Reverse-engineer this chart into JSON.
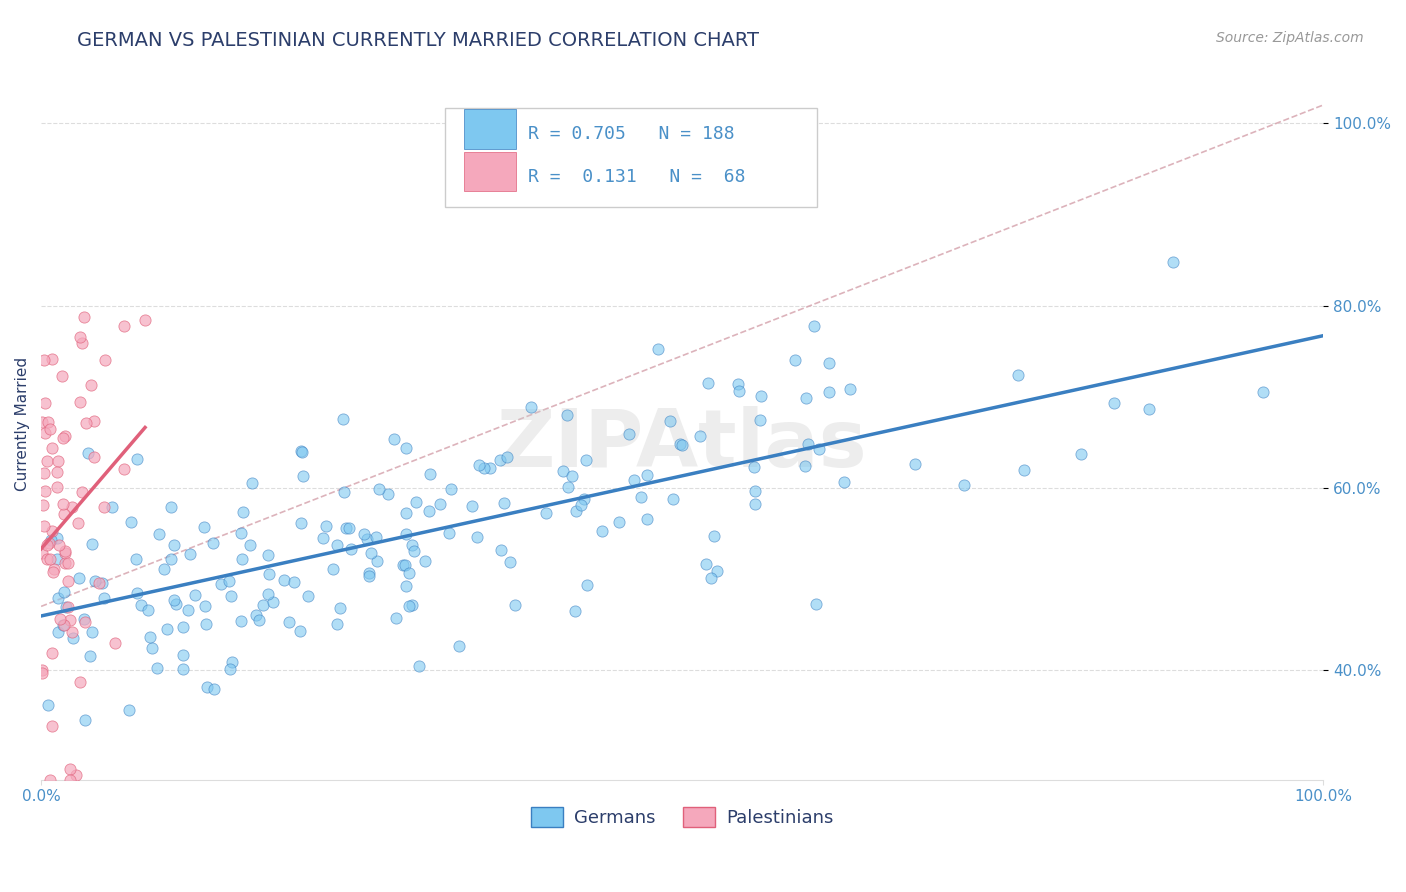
{
  "title": "GERMAN VS PALESTINIAN CURRENTLY MARRIED CORRELATION CHART",
  "source": "Source: ZipAtlas.com",
  "ylabel": "Currently Married",
  "german_R": 0.705,
  "german_N": 188,
  "palestinian_R": 0.131,
  "palestinian_N": 68,
  "german_color": "#7EC8F0",
  "german_color_dark": "#3A7FC1",
  "palestinian_color": "#F5A8BC",
  "palestinian_color_dark": "#E0607A",
  "legend_label_german": "Germans",
  "legend_label_palestinian": "Palestinians",
  "watermark": "ZIPAtlas",
  "xlim": [
    0.0,
    1.0
  ],
  "ylim": [
    0.28,
    1.06
  ],
  "title_color": "#2C3E6B",
  "source_color": "#999999",
  "tick_color": "#4A90C8",
  "background_color": "#FFFFFF",
  "grid_color": "#DDDDDD",
  "title_fontsize": 14,
  "axis_label_fontsize": 11,
  "tick_fontsize": 11,
  "legend_text_color": "#4A90C8",
  "ref_line_color": "#D4A0AA"
}
